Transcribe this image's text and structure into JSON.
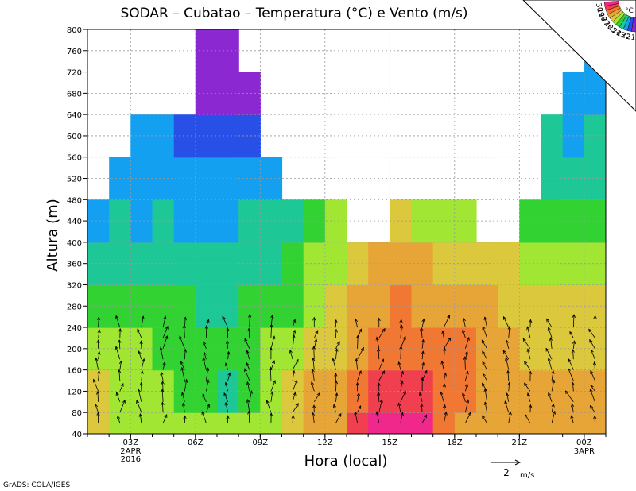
{
  "chart_data": {
    "type": "heatmap",
    "title": "SODAR – Cubatao – Temperatura (°C) e Vento (m/s)",
    "xlabel": "Hora (local)",
    "ylabel": "Altura (m)",
    "ylim": [
      40,
      800
    ],
    "y_ticks": [
      40,
      80,
      120,
      160,
      200,
      240,
      280,
      320,
      360,
      400,
      440,
      480,
      520,
      560,
      600,
      640,
      680,
      720,
      760,
      800
    ],
    "x_ticks": [
      {
        "label": "03Z",
        "sub": [
          "2APR",
          "2016"
        ]
      },
      {
        "label": "06Z",
        "sub": []
      },
      {
        "label": "09Z",
        "sub": []
      },
      {
        "label": "12Z",
        "sub": []
      },
      {
        "label": "15Z",
        "sub": []
      },
      {
        "label": "18Z",
        "sub": []
      },
      {
        "label": "21Z",
        "sub": []
      },
      {
        "label": "00Z",
        "sub": [
          "3APR"
        ]
      }
    ],
    "grid": true,
    "color_scale": {
      "unit": "°C",
      "levels": [
        {
          "label": "30",
          "color": "#f0288c"
        },
        {
          "label": "29",
          "color": "#f04050"
        },
        {
          "label": "28",
          "color": "#f07832"
        },
        {
          "label": "27",
          "color": "#e6a536"
        },
        {
          "label": "26",
          "color": "#dcc83c"
        },
        {
          "label": "25",
          "color": "#a0e632"
        },
        {
          "label": "24",
          "color": "#32d232"
        },
        {
          "label": "23",
          "color": "#1ec896"
        },
        {
          "label": "22",
          "color": "#14a0f0"
        },
        {
          "label": "21",
          "color": "#2850e6"
        },
        {
          "label": "",
          "color": "#8c28d2"
        }
      ]
    },
    "approx_temperature_c": {
      "hours_utc": [
        1,
        2,
        3,
        4,
        5,
        6,
        7,
        8,
        9,
        10,
        11,
        12,
        13,
        14,
        15,
        16,
        17,
        18,
        19,
        20,
        21,
        22,
        23,
        24
      ],
      "heights_m": [
        40,
        120,
        200,
        280,
        360,
        440,
        520,
        600,
        680,
        760
      ],
      "values": [
        [
          25.5,
          25.5,
          24.5,
          23.5,
          22.5,
          22.0,
          null,
          null,
          null,
          null
        ],
        [
          24.5,
          24.5,
          24.5,
          23.5,
          23.0,
          22.5,
          21.8,
          null,
          null,
          null
        ],
        [
          24.5,
          24.5,
          24.5,
          23.5,
          23.0,
          22.0,
          21.8,
          21.5,
          null,
          null
        ],
        [
          24.5,
          24.5,
          24.0,
          23.5,
          23.0,
          22.5,
          21.8,
          21.5,
          null,
          null
        ],
        [
          24.5,
          23.5,
          24.0,
          23.5,
          22.5,
          22.0,
          21.8,
          21.0,
          null,
          null
        ],
        [
          24.5,
          23.5,
          24.0,
          23.0,
          22.5,
          22.0,
          21.8,
          21.0,
          20.5,
          20.5
        ],
        [
          24.5,
          23.2,
          24.0,
          23.0,
          22.5,
          22.0,
          21.8,
          21.0,
          20.5,
          20.5
        ],
        [
          24.5,
          23.5,
          24.0,
          23.5,
          23.0,
          22.5,
          21.8,
          21.0,
          20.5,
          null
        ],
        [
          24.5,
          24.5,
          24.5,
          23.5,
          23.0,
          22.5,
          22.0,
          null,
          null,
          null
        ],
        [
          25.5,
          25.5,
          25.0,
          24.0,
          23.5,
          22.8,
          null,
          null,
          null,
          null
        ],
        [
          26.5,
          26.5,
          25.5,
          25.0,
          24.5,
          23.5,
          null,
          null,
          null,
          null
        ],
        [
          27.0,
          26.5,
          26.0,
          25.5,
          25.0,
          24.5,
          null,
          null,
          null,
          null
        ],
        [
          28.5,
          28.0,
          27.0,
          26.5,
          25.5,
          null,
          null,
          null,
          null,
          null
        ],
        [
          29.5,
          29.0,
          28.0,
          27.0,
          26.5,
          null,
          null,
          null,
          null,
          null
        ],
        [
          29.8,
          29.0,
          28.0,
          27.5,
          26.5,
          25.5,
          null,
          null,
          null,
          null
        ],
        [
          29.5,
          29.0,
          28.0,
          27.0,
          26.5,
          25.0,
          null,
          null,
          null,
          null
        ],
        [
          27.5,
          27.5,
          27.5,
          26.5,
          26.0,
          24.5,
          null,
          null,
          null,
          null
        ],
        [
          27.0,
          27.5,
          27.5,
          26.5,
          26.0,
          24.5,
          null,
          null,
          null,
          null
        ],
        [
          26.5,
          27.0,
          27.0,
          26.5,
          26.0,
          null,
          null,
          null,
          null,
          null
        ],
        [
          26.5,
          26.5,
          26.5,
          26.0,
          25.5,
          null,
          null,
          null,
          null,
          null
        ],
        [
          26.5,
          26.5,
          26.0,
          25.5,
          25.0,
          24.0,
          null,
          null,
          null,
          null
        ],
        [
          26.5,
          26.5,
          26.0,
          25.5,
          25.0,
          23.5,
          22.8,
          22.5,
          null,
          null
        ],
        [
          26.5,
          26.5,
          26.0,
          25.5,
          25.0,
          23.5,
          22.5,
          22.0,
          21.5,
          null
        ],
        [
          26.5,
          26.5,
          26.0,
          25.5,
          25.0,
          23.5,
          23.0,
          22.5,
          22.0,
          21.5
        ]
      ]
    },
    "vector_key": {
      "label": "2",
      "unit": "m/s"
    }
  },
  "footer": {
    "credit": "GrADS: COLA/IGES"
  }
}
